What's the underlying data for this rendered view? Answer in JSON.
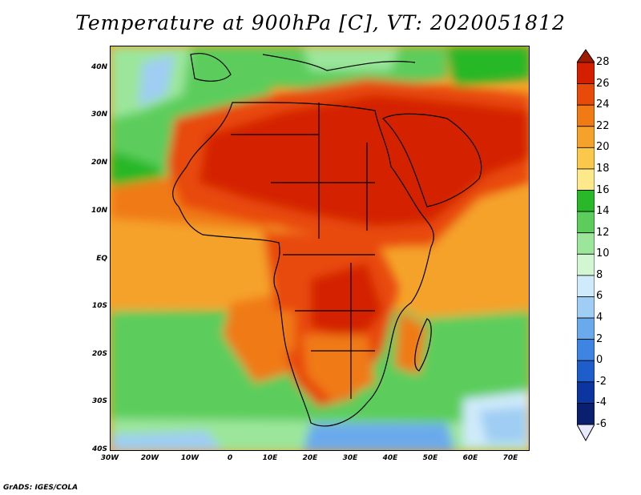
{
  "title": "Temperature at 900hPa [C], VT: 2020051812",
  "footer": "GrADS: IGES/COLA",
  "map": {
    "region": "Africa and Arabian Peninsula",
    "projection": "latlon",
    "lon_range": [
      -30,
      75
    ],
    "lat_range": [
      -40,
      45
    ],
    "field": "Temperature at 900hPa",
    "units": "C"
  },
  "axes": {
    "lat_ticks": [
      "40N",
      "30N",
      "20N",
      "10N",
      "EQ",
      "10S",
      "20S",
      "30S",
      "40S"
    ],
    "lon_ticks": [
      "30W",
      "20W",
      "10W",
      "0",
      "10E",
      "20E",
      "30E",
      "40E",
      "50E",
      "60E",
      "70E"
    ]
  },
  "colorbar": {
    "labels": [
      "28",
      "26",
      "24",
      "22",
      "20",
      "18",
      "16",
      "14",
      "12",
      "10",
      "8",
      "6",
      "4",
      "2",
      "0",
      "-2",
      "-4",
      "-6"
    ],
    "colors": [
      "#a01a00",
      "#d42000",
      "#e84a0a",
      "#f07a14",
      "#f5a22a",
      "#fac84a",
      "#fde98a",
      "#28b828",
      "#5ccd5c",
      "#9be69b",
      "#d2f5d2",
      "#cfeafa",
      "#9fcdf3",
      "#6aaaec",
      "#3d85e0",
      "#1e5ecb",
      "#0c35a0",
      "#0a1f6e"
    ]
  },
  "chart_data": {
    "type": "heatmap",
    "title": "Temperature at 900hPa [C], VT: 2020051812",
    "x_axis": "longitude",
    "x_range": [
      -30,
      75
    ],
    "y_axis": "latitude",
    "y_range": [
      -40,
      45
    ],
    "x_ticks": [
      "30W",
      "20W",
      "10W",
      "0",
      "10E",
      "20E",
      "30E",
      "40E",
      "50E",
      "60E",
      "70E"
    ],
    "y_ticks": [
      "40N",
      "30N",
      "20N",
      "10N",
      "EQ",
      "10S",
      "20S",
      "30S",
      "40S"
    ],
    "colorbar_levels": [
      -6,
      -4,
      -2,
      0,
      2,
      4,
      6,
      8,
      10,
      12,
      14,
      16,
      18,
      20,
      22,
      24,
      26,
      28
    ]
  }
}
